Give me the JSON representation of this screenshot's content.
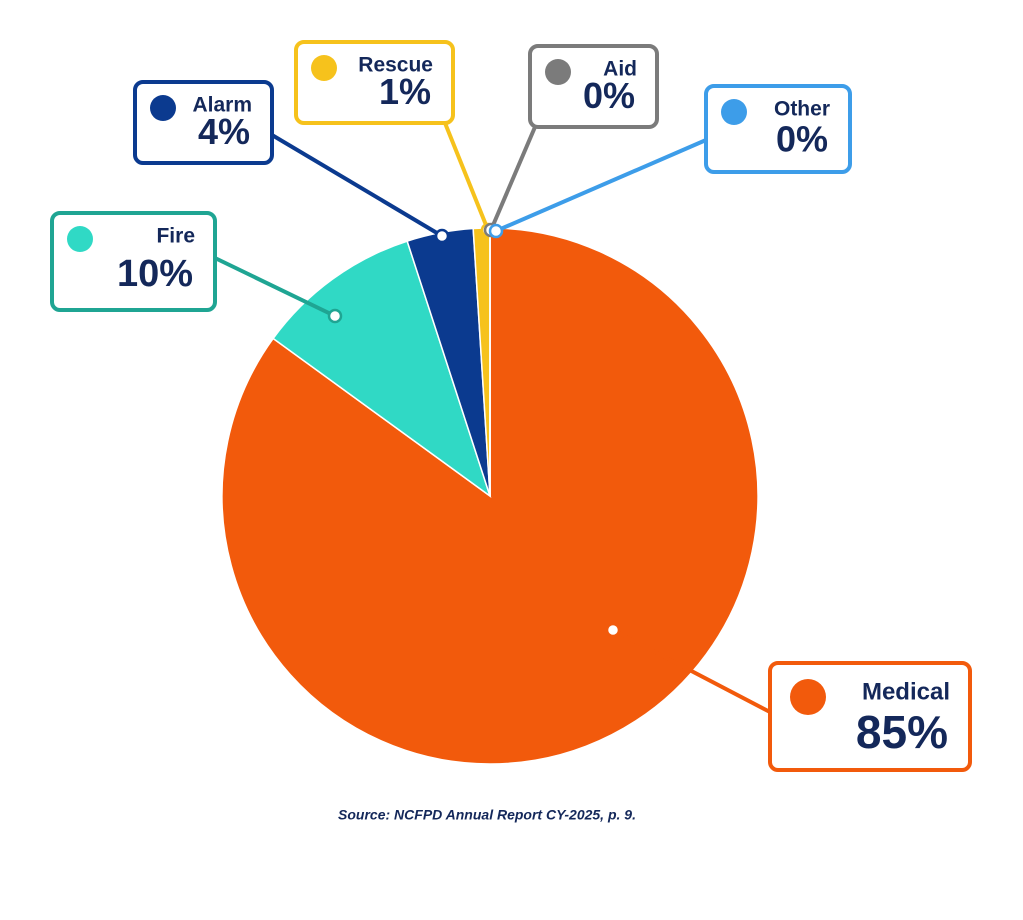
{
  "chart_data": {
    "type": "pie",
    "categories": [
      "Medical",
      "Fire",
      "Alarm",
      "Rescue",
      "Aid",
      "Other"
    ],
    "values": [
      85,
      10,
      4,
      1,
      0,
      0
    ],
    "value_labels": [
      "85%",
      "10%",
      "4%",
      "1%",
      "0%",
      "0%"
    ],
    "colors": [
      "#f25a0c",
      "#30d9c5",
      "#0b3a8f",
      "#f6c21c",
      "#7b7b7b",
      "#3d9de9"
    ],
    "source": "Source: NCFPD Annual Report CY-2025, p. 9."
  }
}
